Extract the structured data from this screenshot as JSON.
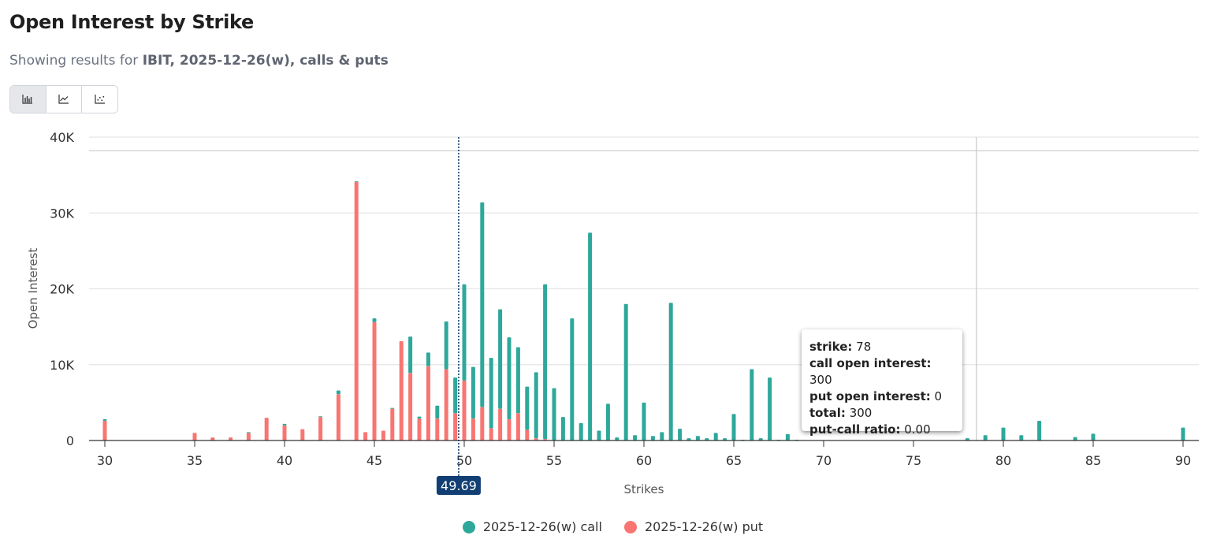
{
  "header": {
    "title": "Open Interest by Strike",
    "subtitle_prefix": "Showing results for",
    "subtitle_bold": "IBIT, 2025-12-26(w), calls & puts"
  },
  "chart_type_buttons": [
    {
      "icon": "bar-chart-icon",
      "active": true
    },
    {
      "icon": "line-chart-icon",
      "active": false
    },
    {
      "icon": "scatter-chart-icon",
      "active": false
    }
  ],
  "colors": {
    "call": "#2ea89b",
    "put": "#f87571",
    "spot": "#123f73"
  },
  "chart_data": {
    "type": "bar",
    "stacked": true,
    "xlabel": "Strikes",
    "ylabel": "Open Interest",
    "xlim": [
      29,
      91
    ],
    "ylim": [
      0,
      40000
    ],
    "x_ticks": [
      "30",
      "35",
      "40",
      "45",
      "50",
      "55",
      "60",
      "65",
      "70",
      "75",
      "80",
      "85",
      "90"
    ],
    "y_ticks": [
      "0",
      "10K",
      "20K",
      "30K",
      "40K"
    ],
    "grid": "horizontal",
    "legend_position": "bottom",
    "spot_price": {
      "value": 49.69,
      "label": "49.69"
    },
    "crosshair": {
      "strike": 78.5,
      "value": 38200
    },
    "strikes": [
      30,
      35,
      36,
      37,
      38,
      39,
      40,
      41,
      42,
      43,
      44,
      44.5,
      45,
      45.5,
      46,
      46.5,
      47,
      47.5,
      48,
      48.5,
      49,
      49.5,
      50,
      50.5,
      51,
      51.5,
      52,
      52.5,
      53,
      53.5,
      54,
      54.5,
      55,
      55.5,
      56,
      56.5,
      57,
      57.5,
      58,
      58.5,
      59,
      59.5,
      60,
      60.5,
      61,
      61.5,
      62,
      62.5,
      63,
      63.5,
      64,
      64.5,
      65,
      65.5,
      66,
      66.5,
      67,
      67.5,
      68,
      68.5,
      78,
      79,
      80,
      81,
      82,
      84,
      85,
      90
    ],
    "series": [
      {
        "name": "2025-12-26(w) put",
        "values": [
          2600,
          1000,
          400,
          400,
          1000,
          3000,
          2000,
          1500,
          3100,
          6100,
          34100,
          1100,
          15600,
          1300,
          4200,
          13100,
          8900,
          2900,
          9800,
          2900,
          9400,
          3600,
          7900,
          2900,
          4400,
          1600,
          4200,
          2800,
          3600,
          1400,
          300,
          200,
          0,
          0,
          0,
          0,
          0,
          0,
          0,
          0,
          0,
          0,
          0,
          0,
          0,
          0,
          0,
          0,
          0,
          0,
          0,
          0,
          0,
          0,
          0,
          0,
          0,
          0,
          0,
          0,
          0,
          0,
          0,
          0,
          0,
          0,
          0,
          0
        ]
      },
      {
        "name": "2025-12-26(w) call",
        "values": [
          200,
          0,
          0,
          0,
          100,
          0,
          200,
          0,
          100,
          500,
          100,
          0,
          500,
          0,
          100,
          0,
          4800,
          250,
          1800,
          1700,
          6300,
          4700,
          12700,
          6800,
          27000,
          9300,
          13100,
          10800,
          8700,
          5700,
          8700,
          20400,
          6900,
          3100,
          16100,
          2300,
          27400,
          1300,
          4850,
          400,
          18000,
          700,
          5000,
          600,
          1100,
          18150,
          1550,
          300,
          600,
          300,
          1000,
          300,
          3500,
          100,
          9400,
          300,
          8300,
          100,
          850,
          100,
          300,
          700,
          1700,
          700,
          2600,
          450,
          900,
          1700
        ]
      }
    ]
  },
  "tooltip": {
    "strike_label": "strike:",
    "strike_value": "78",
    "call_label": "call open interest:",
    "call_value": "300",
    "put_label": "put open interest:",
    "put_value": "0",
    "total_label": "total:",
    "total_value": "300",
    "ratio_label": "put-call ratio:",
    "ratio_value": "0.00"
  },
  "legend": [
    {
      "label": "2025-12-26(w) call",
      "series": "call"
    },
    {
      "label": "2025-12-26(w) put",
      "series": "put"
    }
  ]
}
